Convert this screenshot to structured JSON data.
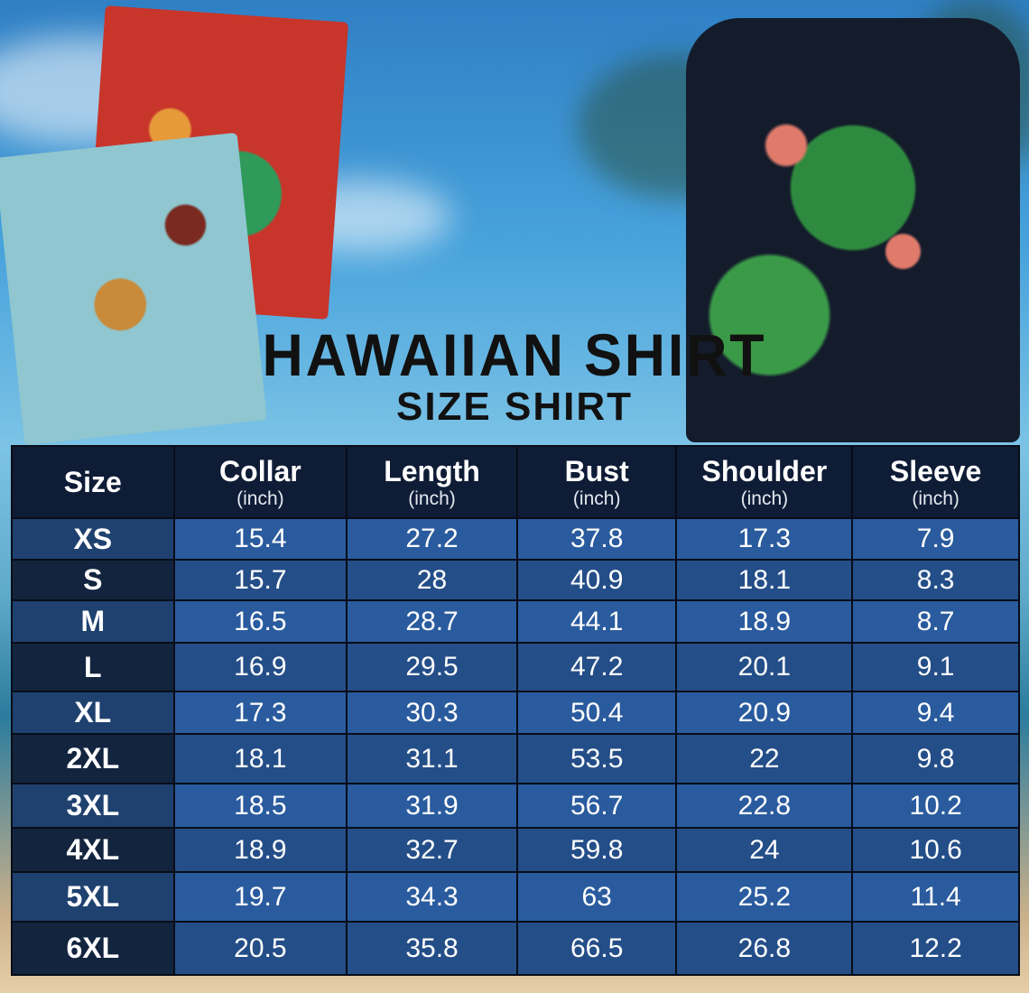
{
  "title": "HAWAIIAN SHIRT",
  "subtitle": "SIZE SHIRT",
  "table": {
    "headers": [
      {
        "label": "Size",
        "unit": ""
      },
      {
        "label": "Collar",
        "unit": "(inch)"
      },
      {
        "label": "Length",
        "unit": "(inch)"
      },
      {
        "label": "Bust",
        "unit": "(inch)"
      },
      {
        "label": "Shoulder",
        "unit": "(inch)"
      },
      {
        "label": "Sleeve",
        "unit": "(inch)"
      }
    ],
    "rows": [
      [
        "XS",
        "15.4",
        "27.2",
        "37.8",
        "17.3",
        "7.9"
      ],
      [
        "S",
        "15.7",
        "28",
        "40.9",
        "18.1",
        "8.3"
      ],
      [
        "M",
        "16.5",
        "28.7",
        "44.1",
        "18.9",
        "8.7"
      ],
      [
        "L",
        "16.9",
        "29.5",
        "47.2",
        "20.1",
        "9.1"
      ],
      [
        "XL",
        "17.3",
        "30.3",
        "50.4",
        "20.9",
        "9.4"
      ],
      [
        "2XL",
        "18.1",
        "31.1",
        "53.5",
        "22",
        "9.8"
      ],
      [
        "3XL",
        "18.5",
        "31.9",
        "56.7",
        "22.8",
        "10.2"
      ],
      [
        "4XL",
        "18.9",
        "32.7",
        "59.8",
        "24",
        "10.6"
      ],
      [
        "5XL",
        "19.7",
        "34.3",
        "63",
        "25.2",
        "11.4"
      ],
      [
        "6XL",
        "20.5",
        "35.8",
        "66.5",
        "26.8",
        "12.2"
      ]
    ]
  },
  "colors": {
    "header_bg": "#0f1c36",
    "row_light": "#2a5b9e",
    "row_dark": "#244e88",
    "size_col": "#13243f"
  }
}
